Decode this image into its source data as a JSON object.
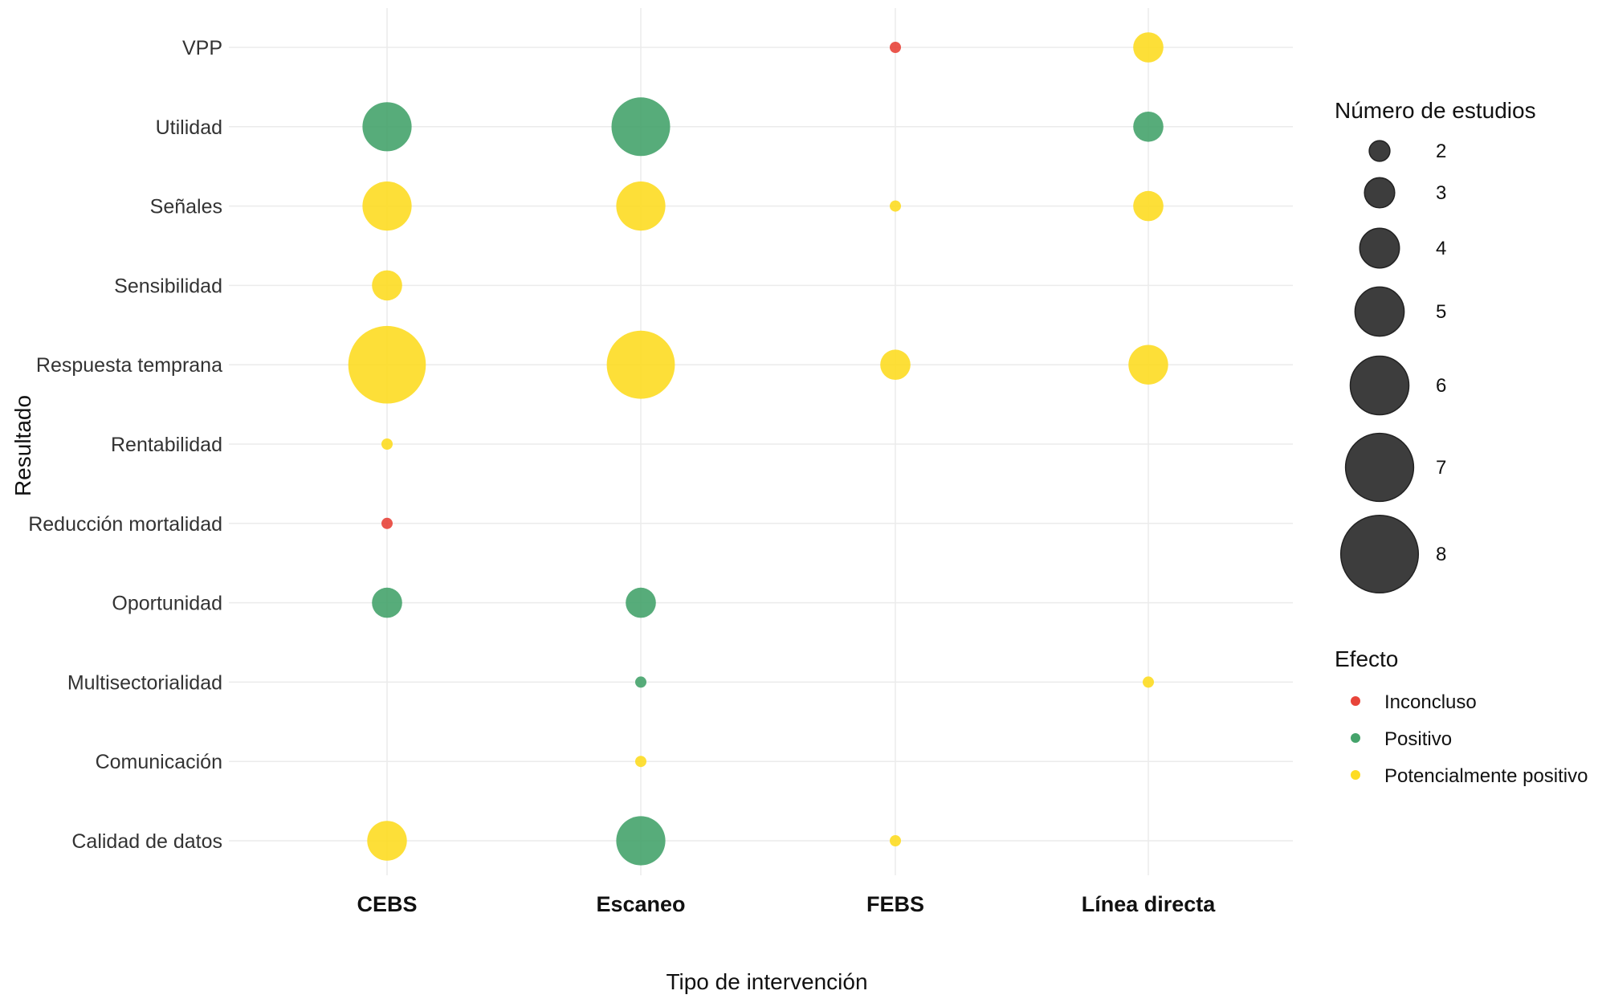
{
  "chart_data": {
    "type": "scatter",
    "title": "",
    "xlabel": "Tipo de intervención",
    "ylabel": "Resultado",
    "x_categories": [
      "CEBS",
      "Escaneo",
      "FEBS",
      "Línea directa"
    ],
    "y_categories": [
      "VPP",
      "Utilidad",
      "Señales",
      "Sensibilidad",
      "Respuesta temprana",
      "Rentabilidad",
      "Reducción mortalidad",
      "Oportunidad",
      "Multisectorialidad",
      "Comunicación",
      "Calidad de datos"
    ],
    "size_legend": {
      "title": "Número de estudios",
      "values": [
        2,
        3,
        4,
        5,
        6,
        7,
        8
      ],
      "color": "#3d3d3d"
    },
    "color_legend": {
      "title": "Efecto",
      "entries": [
        {
          "label": "Inconcluso",
          "color": "#e8443a"
        },
        {
          "label": "Positivo",
          "color": "#45a36b"
        },
        {
          "label": "Potencialmente positivo",
          "color": "#fddc22"
        }
      ]
    },
    "points": [
      {
        "x": "FEBS",
        "y": "VPP",
        "studies": 1,
        "effect": "Inconcluso"
      },
      {
        "x": "Línea directa",
        "y": "VPP",
        "studies": 3,
        "effect": "Potencialmente positivo"
      },
      {
        "x": "CEBS",
        "y": "Utilidad",
        "studies": 5,
        "effect": "Positivo"
      },
      {
        "x": "Escaneo",
        "y": "Utilidad",
        "studies": 6,
        "effect": "Positivo"
      },
      {
        "x": "Línea directa",
        "y": "Utilidad",
        "studies": 3,
        "effect": "Positivo"
      },
      {
        "x": "CEBS",
        "y": "Señales",
        "studies": 5,
        "effect": "Potencialmente positivo"
      },
      {
        "x": "Escaneo",
        "y": "Señales",
        "studies": 5,
        "effect": "Potencialmente positivo"
      },
      {
        "x": "FEBS",
        "y": "Señales",
        "studies": 1,
        "effect": "Potencialmente positivo"
      },
      {
        "x": "Línea directa",
        "y": "Señales",
        "studies": 3,
        "effect": "Potencialmente positivo"
      },
      {
        "x": "CEBS",
        "y": "Sensibilidad",
        "studies": 3,
        "effect": "Potencialmente positivo"
      },
      {
        "x": "CEBS",
        "y": "Respuesta temprana",
        "studies": 8,
        "effect": "Potencialmente positivo"
      },
      {
        "x": "Escaneo",
        "y": "Respuesta temprana",
        "studies": 7,
        "effect": "Potencialmente positivo"
      },
      {
        "x": "FEBS",
        "y": "Respuesta temprana",
        "studies": 3,
        "effect": "Potencialmente positivo"
      },
      {
        "x": "Línea directa",
        "y": "Respuesta temprana",
        "studies": 4,
        "effect": "Potencialmente positivo"
      },
      {
        "x": "CEBS",
        "y": "Rentabilidad",
        "studies": 1,
        "effect": "Potencialmente positivo"
      },
      {
        "x": "CEBS",
        "y": "Reducción mortalidad",
        "studies": 1,
        "effect": "Inconcluso"
      },
      {
        "x": "CEBS",
        "y": "Oportunidad",
        "studies": 3,
        "effect": "Positivo"
      },
      {
        "x": "Escaneo",
        "y": "Oportunidad",
        "studies": 3,
        "effect": "Positivo"
      },
      {
        "x": "Escaneo",
        "y": "Multisectorialidad",
        "studies": 1,
        "effect": "Positivo"
      },
      {
        "x": "Línea directa",
        "y": "Multisectorialidad",
        "studies": 1,
        "effect": "Potencialmente positivo"
      },
      {
        "x": "Escaneo",
        "y": "Comunicación",
        "studies": 1,
        "effect": "Potencialmente positivo"
      },
      {
        "x": "CEBS",
        "y": "Calidad de datos",
        "studies": 4,
        "effect": "Potencialmente positivo"
      },
      {
        "x": "Escaneo",
        "y": "Calidad de datos",
        "studies": 5,
        "effect": "Positivo"
      },
      {
        "x": "FEBS",
        "y": "Calidad de datos",
        "studies": 1,
        "effect": "Potencialmente positivo"
      }
    ],
    "grid": true,
    "legend_position": "right"
  }
}
